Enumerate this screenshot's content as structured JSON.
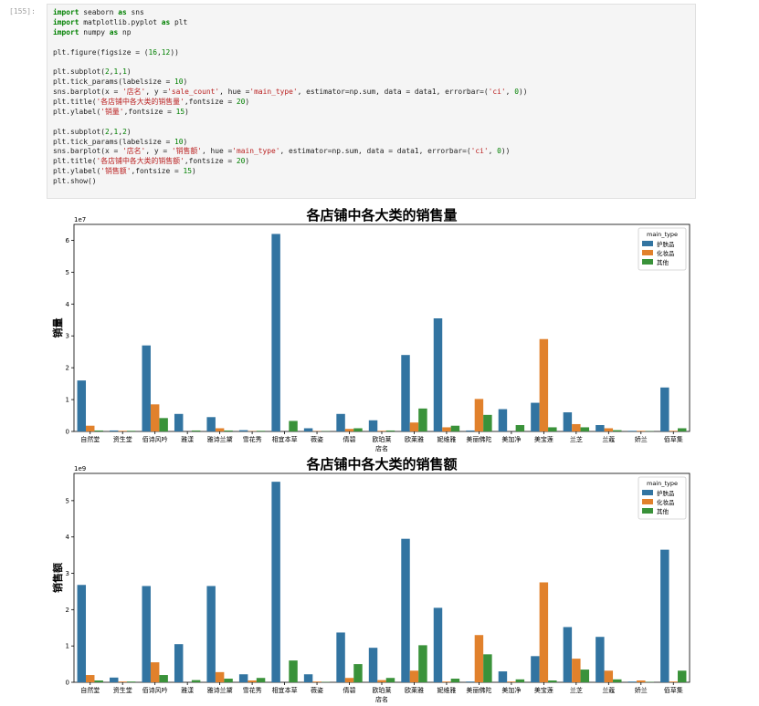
{
  "cell": {
    "prompt": "[155]:",
    "code_lines": [
      [
        {
          "t": "import",
          "c": "kw"
        },
        {
          "t": " seaborn "
        },
        {
          "t": "as",
          "c": "kw"
        },
        {
          "t": " sns"
        }
      ],
      [
        {
          "t": "import",
          "c": "kw"
        },
        {
          "t": " matplotlib.pyplot "
        },
        {
          "t": "as",
          "c": "kw"
        },
        {
          "t": " plt"
        }
      ],
      [
        {
          "t": "import",
          "c": "kw"
        },
        {
          "t": " numpy "
        },
        {
          "t": "as",
          "c": "kw"
        },
        {
          "t": " np"
        }
      ],
      [],
      [
        {
          "t": "plt.figure(figsize = ("
        },
        {
          "t": "16",
          "c": "num"
        },
        {
          "t": ","
        },
        {
          "t": "12",
          "c": "num"
        },
        {
          "t": "))"
        }
      ],
      [],
      [
        {
          "t": "plt.subplot("
        },
        {
          "t": "2",
          "c": "num"
        },
        {
          "t": ","
        },
        {
          "t": "1",
          "c": "num"
        },
        {
          "t": ","
        },
        {
          "t": "1",
          "c": "num"
        },
        {
          "t": ")"
        }
      ],
      [
        {
          "t": "plt.tick_params(labelsize = "
        },
        {
          "t": "10",
          "c": "num"
        },
        {
          "t": ")"
        }
      ],
      [
        {
          "t": "sns.barplot(x = "
        },
        {
          "t": "'店名'",
          "c": "str"
        },
        {
          "t": ", y ="
        },
        {
          "t": "'sale_count'",
          "c": "str"
        },
        {
          "t": ", hue ="
        },
        {
          "t": "'main_type'",
          "c": "str"
        },
        {
          "t": ", estimator=np.sum, data = data1, errorbar=("
        },
        {
          "t": "'ci'",
          "c": "str"
        },
        {
          "t": ", "
        },
        {
          "t": "0",
          "c": "num"
        },
        {
          "t": "))"
        }
      ],
      [
        {
          "t": "plt.title("
        },
        {
          "t": "'各店铺中各大类的销售量'",
          "c": "str"
        },
        {
          "t": ",fontsize = "
        },
        {
          "t": "20",
          "c": "num"
        },
        {
          "t": ")"
        }
      ],
      [
        {
          "t": "plt.ylabel("
        },
        {
          "t": "'销量'",
          "c": "str"
        },
        {
          "t": ",fontsize = "
        },
        {
          "t": "15",
          "c": "num"
        },
        {
          "t": ")"
        }
      ],
      [],
      [
        {
          "t": "plt.subplot("
        },
        {
          "t": "2",
          "c": "num"
        },
        {
          "t": ","
        },
        {
          "t": "1",
          "c": "num"
        },
        {
          "t": ","
        },
        {
          "t": "2",
          "c": "num"
        },
        {
          "t": ")"
        }
      ],
      [
        {
          "t": "plt.tick_params(labelsize = "
        },
        {
          "t": "10",
          "c": "num"
        },
        {
          "t": ")"
        }
      ],
      [
        {
          "t": "sns.barplot(x = "
        },
        {
          "t": "'店名'",
          "c": "str"
        },
        {
          "t": ", y = "
        },
        {
          "t": "'销售额'",
          "c": "str"
        },
        {
          "t": ", hue ="
        },
        {
          "t": "'main_type'",
          "c": "str"
        },
        {
          "t": ", estimator=np.sum, data = data1, errorbar=("
        },
        {
          "t": "'ci'",
          "c": "str"
        },
        {
          "t": ", "
        },
        {
          "t": "0",
          "c": "num"
        },
        {
          "t": "))"
        }
      ],
      [
        {
          "t": "plt.title("
        },
        {
          "t": "'各店铺中各大类的销售额'",
          "c": "str"
        },
        {
          "t": ",fontsize = "
        },
        {
          "t": "20",
          "c": "num"
        },
        {
          "t": ")"
        }
      ],
      [
        {
          "t": "plt.ylabel("
        },
        {
          "t": "'销售额'",
          "c": "str"
        },
        {
          "t": ",fontsize = "
        },
        {
          "t": "15",
          "c": "num"
        },
        {
          "t": ")"
        }
      ],
      [
        {
          "t": "plt.show()"
        }
      ]
    ]
  },
  "colors": {
    "护肤品": "#3274a1",
    "化妆品": "#e1812c",
    "其他": "#3a923a"
  },
  "chart_data": [
    {
      "type": "bar",
      "title": "各店铺中各大类的销售量",
      "xlabel": "店名",
      "ylabel": "销量",
      "offset_text": "1e7",
      "scale": 10000000,
      "ylim": [
        0,
        6.5
      ],
      "yticks": [
        0,
        1,
        2,
        3,
        4,
        5,
        6
      ],
      "legend_title": "main_type",
      "legend_position": "upper right",
      "categories": [
        "自然堂",
        "资生堂",
        "佰诗风吟",
        "雅漾",
        "雅诗兰黛",
        "雪花秀",
        "相宜本草",
        "薇姿",
        "倩碧",
        "欧珀莱",
        "欧莱雅",
        "妮维雅",
        "美丽佛陀",
        "美加净",
        "美宝莲",
        "兰芝",
        "兰蔻",
        "娇兰",
        "佰草集"
      ],
      "series": [
        {
          "name": "护肤品",
          "values": [
            1.6,
            0.03,
            2.7,
            0.55,
            0.45,
            0.04,
            6.2,
            0.1,
            0.55,
            0.35,
            2.4,
            3.55,
            0.03,
            0.7,
            0.9,
            0.6,
            0.2,
            0.02,
            1.38
          ]
        },
        {
          "name": "化妆品",
          "values": [
            0.18,
            0.02,
            0.85,
            0,
            0.1,
            0.01,
            0,
            0.01,
            0.08,
            0.02,
            0.28,
            0.13,
            1.02,
            0,
            2.9,
            0.23,
            0.1,
            0.02,
            0.02
          ]
        },
        {
          "name": "其他",
          "values": [
            0.03,
            0.02,
            0.42,
            0.03,
            0.03,
            0.02,
            0.33,
            0.01,
            0.1,
            0.03,
            0.72,
            0.18,
            0.52,
            0.2,
            0.13,
            0.13,
            0.04,
            0.01,
            0.1
          ]
        }
      ]
    },
    {
      "type": "bar",
      "title": "各店铺中各大类的销售额",
      "xlabel": "店名",
      "ylabel": "销售额",
      "offset_text": "1e9",
      "scale": 1000000000,
      "ylim": [
        0,
        5.75
      ],
      "yticks": [
        0,
        1,
        2,
        3,
        4,
        5
      ],
      "legend_title": "main_type",
      "legend_position": "upper right",
      "categories": [
        "自然堂",
        "资生堂",
        "佰诗风吟",
        "雅漾",
        "雅诗兰黛",
        "雪花秀",
        "相宜本草",
        "薇姿",
        "倩碧",
        "欧珀莱",
        "欧莱雅",
        "妮维雅",
        "美丽佛陀",
        "美加净",
        "美宝莲",
        "兰芝",
        "兰蔻",
        "娇兰",
        "佰草集"
      ],
      "series": [
        {
          "name": "护肤品",
          "values": [
            2.68,
            0.13,
            2.65,
            1.05,
            2.65,
            0.22,
            5.52,
            0.22,
            1.37,
            0.95,
            3.95,
            2.05,
            0.02,
            0.3,
            0.72,
            1.52,
            1.25,
            0.02,
            3.65
          ]
        },
        {
          "name": "化妆品",
          "values": [
            0.2,
            0.02,
            0.55,
            0,
            0.28,
            0.05,
            0,
            0.02,
            0.12,
            0.06,
            0.32,
            0.02,
            1.3,
            0.02,
            2.75,
            0.65,
            0.32,
            0.05,
            0.02
          ]
        },
        {
          "name": "其他",
          "values": [
            0.05,
            0.02,
            0.2,
            0.06,
            0.1,
            0.12,
            0.6,
            0.01,
            0.5,
            0.12,
            1.02,
            0.1,
            0.77,
            0.08,
            0.05,
            0.35,
            0.08,
            0.01,
            0.32
          ]
        }
      ]
    }
  ]
}
